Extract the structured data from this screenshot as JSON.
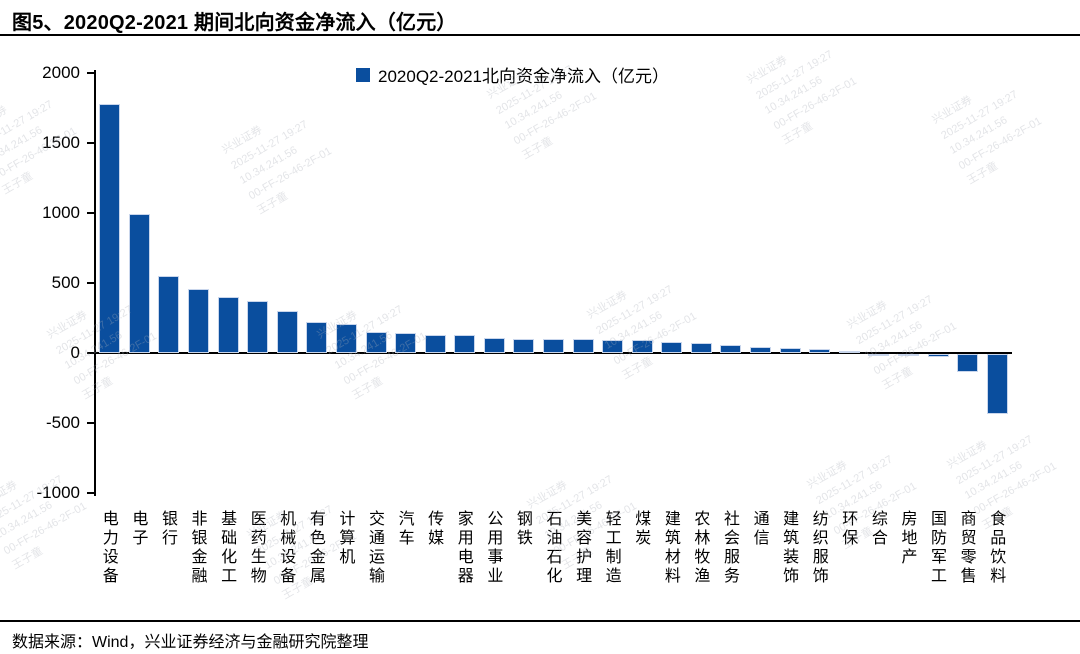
{
  "title": "图5、2020Q2-2021 期间北向资金净流入（亿元）",
  "legend": {
    "label": "2020Q2-2021北向资金净流入（亿元）",
    "marker_color": "#0A4E9E"
  },
  "footer": {
    "source": "数据来源：Wind，兴业证券经济与金融研究院整理"
  },
  "colors": {
    "bar": "#0A4E9E",
    "axis": "#000000",
    "watermark": "#a9aeb8"
  },
  "watermark": {
    "lines": [
      "兴业证券",
      "2025-11-27 19:27",
      "10.34.241.56",
      "00-FF-26-46-2F-01",
      "王子童"
    ]
  },
  "chart_data": {
    "type": "bar",
    "title": "2020Q2-2021北向资金净流入（亿元）",
    "xlabel": "",
    "ylabel": "",
    "unit": "亿元",
    "ylim": [
      -1000,
      2000
    ],
    "yticks": [
      2000,
      1500,
      1000,
      500,
      0,
      -500,
      -1000
    ],
    "grid": false,
    "legend_position": "top-center",
    "categories": [
      "电力设备",
      "电子",
      "银行",
      "非银金融",
      "基础化工",
      "医药生物",
      "机械设备",
      "有色金属",
      "计算机",
      "交通运输",
      "汽车",
      "传媒",
      "家用电器",
      "公用事业",
      "钢铁",
      "石油石化",
      "美容护理",
      "轻工制造",
      "煤炭",
      "建筑材料",
      "农林牧渔",
      "社会服务",
      "通信",
      "建筑装饰",
      "纺织服饰",
      "环保",
      "综合",
      "房地产",
      "国防军工",
      "商贸零售",
      "食品饮料"
    ],
    "values": [
      1780,
      990,
      550,
      455,
      400,
      375,
      300,
      220,
      210,
      150,
      145,
      132,
      128,
      110,
      103,
      100,
      98,
      95,
      90,
      80,
      70,
      58,
      40,
      33,
      28,
      14,
      -8,
      -12,
      -22,
      -130,
      -425
    ]
  }
}
